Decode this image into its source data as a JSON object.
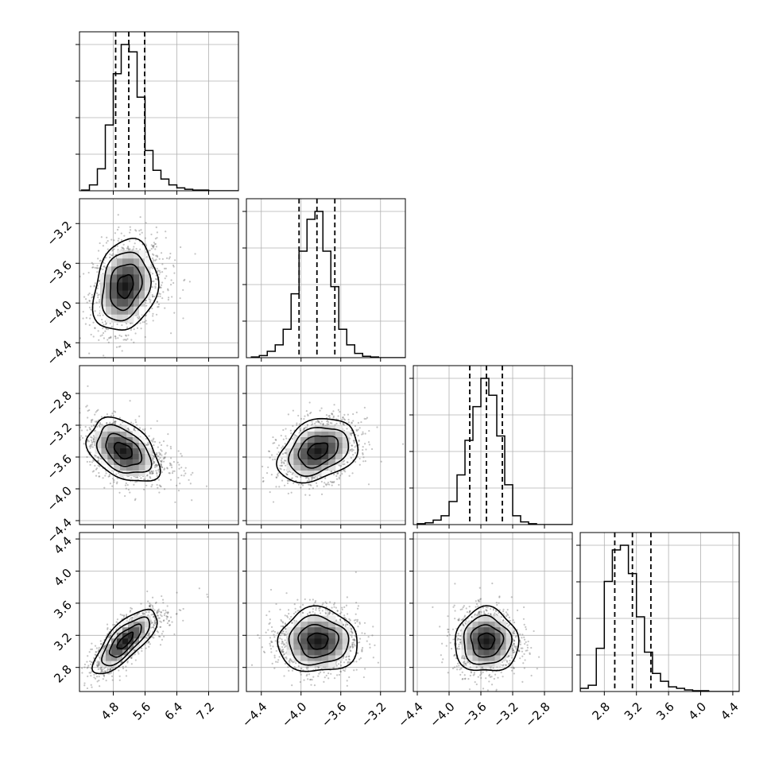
{
  "chart_data": {
    "type": "corner",
    "parameters": 4,
    "grid": true,
    "axes": [
      {
        "ticks": [
          4.8,
          5.6,
          6.4,
          7.2
        ],
        "tick_labels": [
          "4.8",
          "5.6",
          "6.4",
          "7.2"
        ],
        "lim": [
          3.95,
          7.95
        ],
        "quantiles": [
          4.86,
          5.19,
          5.59
        ]
      },
      {
        "ticks": [
          -4.4,
          -4.0,
          -3.6,
          -3.2
        ],
        "tick_labels": [
          "−4.4",
          "−4.0",
          "−3.6",
          "−3.2"
        ],
        "lim": [
          -4.55,
          -2.95
        ],
        "quantiles": [
          -4.02,
          -3.84,
          -3.66
        ]
      },
      {
        "ticks": [
          -4.4,
          -4.0,
          -3.6,
          -3.2,
          -2.8
        ],
        "tick_labels": [
          "−4.4",
          "−4.0",
          "−3.6",
          "−3.2",
          "−2.8"
        ],
        "lim": [
          -4.45,
          -2.45
        ],
        "quantiles": [
          -3.74,
          -3.53,
          -3.33
        ]
      },
      {
        "ticks": [
          2.8,
          3.2,
          3.6,
          4.0,
          4.4
        ],
        "tick_labels": [
          "2.8",
          "3.2",
          "3.6",
          "4.0",
          "4.4"
        ],
        "lim": [
          2.5,
          4.48
        ],
        "quantiles": [
          2.93,
          3.15,
          3.38
        ]
      }
    ],
    "histograms": [
      {
        "param": 0,
        "bin_start": 4.0,
        "bin_width": 0.2,
        "counts": [
          1,
          8,
          30,
          90,
          160,
          200,
          190,
          128,
          55,
          28,
          16,
          8,
          4,
          2,
          1,
          1,
          0,
          0,
          0,
          0
        ]
      },
      {
        "param": 1,
        "bin_start": -4.5,
        "bin_width": 0.08,
        "counts": [
          1,
          3,
          9,
          18,
          40,
          90,
          150,
          195,
          206,
          150,
          100,
          40,
          18,
          6,
          2,
          1,
          0,
          0,
          0,
          0
        ]
      },
      {
        "param": 2,
        "bin_start": -4.4,
        "bin_width": 0.1,
        "counts": [
          1,
          2,
          5,
          10,
          26,
          56,
          95,
          133,
          165,
          146,
          100,
          45,
          10,
          3,
          1,
          0,
          0,
          0,
          0,
          0
        ]
      },
      {
        "param": 3,
        "bin_start": 2.5,
        "bin_width": 0.1,
        "counts": [
          4,
          8,
          55,
          140,
          180,
          186,
          150,
          95,
          50,
          23,
          13,
          6,
          4,
          2,
          1,
          1,
          0,
          0,
          0,
          0
        ]
      }
    ],
    "pairs": [
      {
        "x": 0,
        "y": 1,
        "center": [
          5.1,
          -3.83
        ],
        "sd": [
          0.4,
          0.23
        ],
        "corr": 0.2
      },
      {
        "x": 0,
        "y": 2,
        "center": [
          5.05,
          -3.52
        ],
        "sd": [
          0.45,
          0.2
        ],
        "corr": -0.4
      },
      {
        "x": 1,
        "y": 2,
        "center": [
          -3.83,
          -3.52
        ],
        "sd": [
          0.2,
          0.2
        ],
        "corr": 0.3
      },
      {
        "x": 0,
        "y": 3,
        "center": [
          5.1,
          3.13
        ],
        "sd": [
          0.4,
          0.2
        ],
        "corr": 0.75
      },
      {
        "x": 1,
        "y": 3,
        "center": [
          -3.83,
          3.13
        ],
        "sd": [
          0.2,
          0.2
        ],
        "corr": 0.0
      },
      {
        "x": 2,
        "y": 3,
        "center": [
          -3.53,
          3.13
        ],
        "sd": [
          0.2,
          0.2
        ],
        "corr": 0.0
      }
    ],
    "contour_levels_sigma": [
      0.5,
      1.0,
      1.5,
      2.0
    ]
  }
}
